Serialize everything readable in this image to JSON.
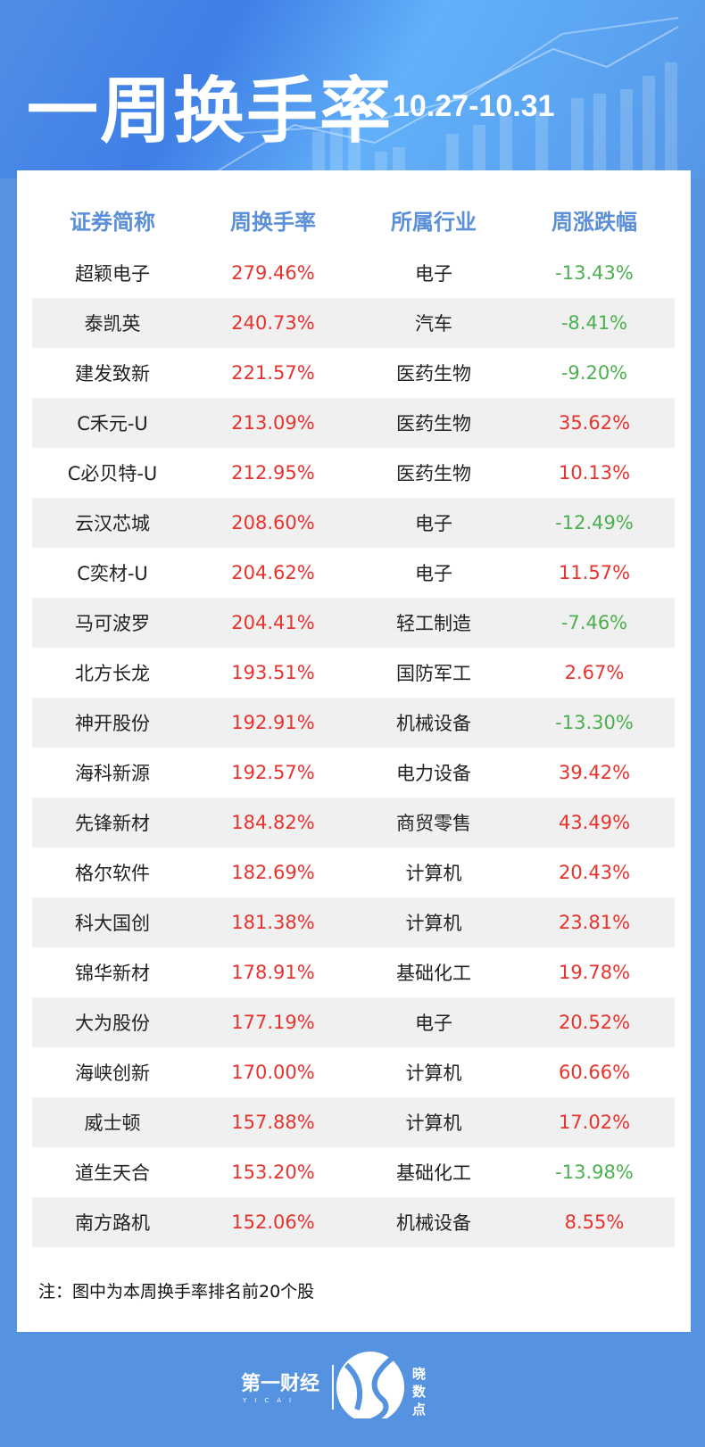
{
  "header": {
    "title": "一周换手率",
    "date_range": "10.27-10.31"
  },
  "table": {
    "columns": [
      "证券简称",
      "周换手率",
      "所属行业",
      "周涨跌幅"
    ],
    "rows": [
      [
        "超颖电子",
        "279.46%",
        "电子",
        "-13.43%"
      ],
      [
        "泰凯英",
        "240.73%",
        "汽车",
        "-8.41%"
      ],
      [
        "建发致新",
        "221.57%",
        "医药生物",
        "-9.20%"
      ],
      [
        "C禾元-U",
        "213.09%",
        "医药生物",
        "35.62%"
      ],
      [
        "C必贝特-U",
        "212.95%",
        "医药生物",
        "10.13%"
      ],
      [
        "云汉芯城",
        "208.60%",
        "电子",
        "-12.49%"
      ],
      [
        "C奕材-U",
        "204.62%",
        "电子",
        "11.57%"
      ],
      [
        "马可波罗",
        "204.41%",
        "轻工制造",
        "-7.46%"
      ],
      [
        "北方长龙",
        "193.51%",
        "国防军工",
        "2.67%"
      ],
      [
        "神开股份",
        "192.91%",
        "机械设备",
        "-13.30%"
      ],
      [
        "海科新源",
        "192.57%",
        "电力设备",
        "39.42%"
      ],
      [
        "先锋新材",
        "184.82%",
        "商贸零售",
        "43.49%"
      ],
      [
        "格尔软件",
        "182.69%",
        "计算机",
        "20.43%"
      ],
      [
        "科大国创",
        "181.38%",
        "计算机",
        "23.81%"
      ],
      [
        "锦华新材",
        "178.91%",
        "基础化工",
        "19.78%"
      ],
      [
        "大为股份",
        "177.19%",
        "电子",
        "20.52%"
      ],
      [
        "海峡创新",
        "170.00%",
        "计算机",
        "60.66%"
      ],
      [
        "威士顿",
        "157.88%",
        "计算机",
        "17.02%"
      ],
      [
        "道生天合",
        "153.20%",
        "基础化工",
        "-13.98%"
      ],
      [
        "南方路机",
        "152.06%",
        "机械设备",
        "8.55%"
      ]
    ]
  },
  "note": "注：图中为本周换手率排名前20个股",
  "footer": {
    "logo_left": "第一财经 YICAI",
    "logo_right": "晓数点"
  },
  "colors": {
    "background": "#5592e0",
    "header_text": "#5b8fd9",
    "positive": "#e8322d",
    "negative": "#4caf50"
  }
}
